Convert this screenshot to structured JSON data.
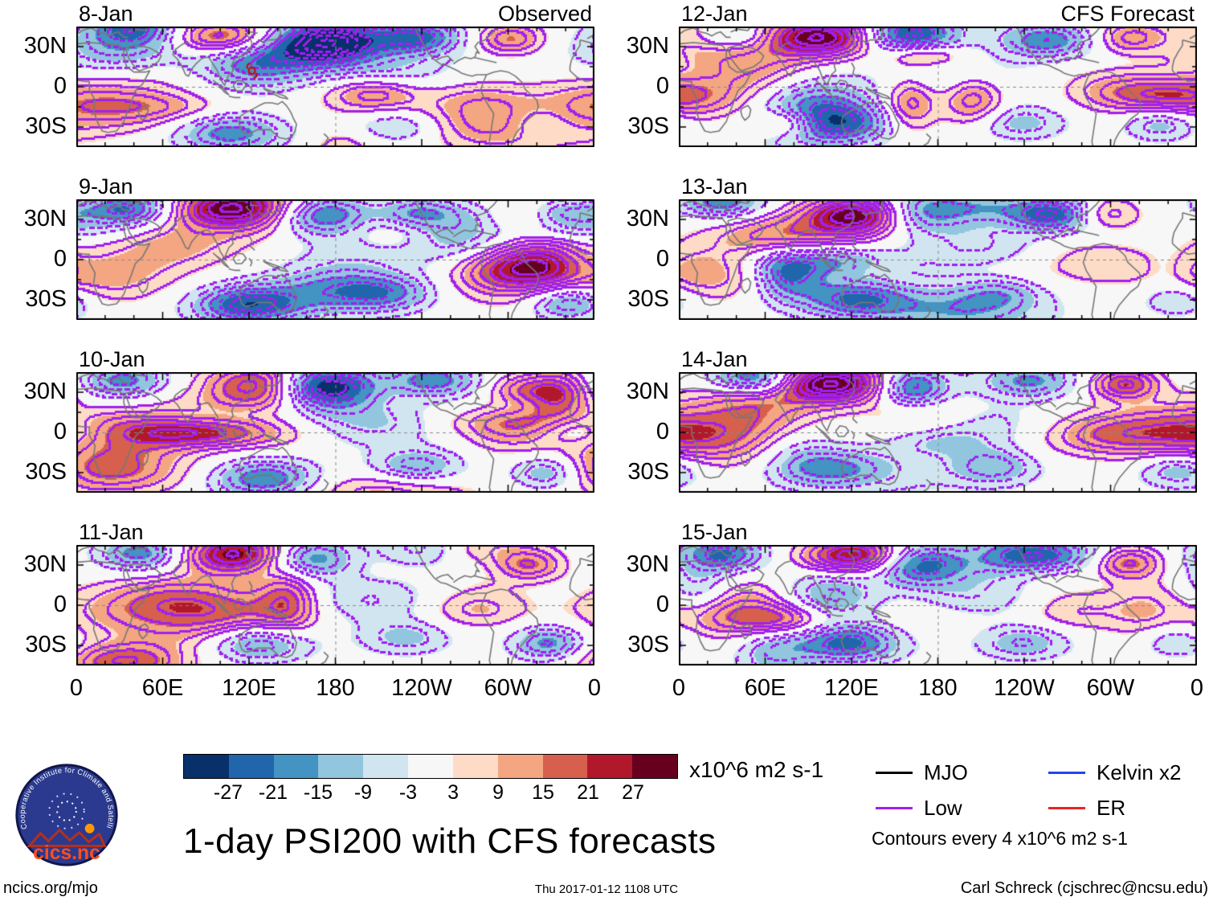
{
  "panels": [
    {
      "date": "8-Jan",
      "corner": "Observed"
    },
    {
      "date": "9-Jan",
      "corner": ""
    },
    {
      "date": "10-Jan",
      "corner": ""
    },
    {
      "date": "11-Jan",
      "corner": ""
    },
    {
      "date": "12-Jan",
      "corner": "CFS Forecast"
    },
    {
      "date": "13-Jan",
      "corner": ""
    },
    {
      "date": "14-Jan",
      "corner": ""
    },
    {
      "date": "15-Jan",
      "corner": ""
    }
  ],
  "axes": {
    "y_ticks": [
      "30N",
      "0",
      "30S"
    ],
    "x_ticks": [
      "0",
      "60E",
      "120E",
      "180",
      "120W",
      "60W",
      "0"
    ]
  },
  "chart_data": {
    "type": "heatmap",
    "title": "1-day PSI200 with CFS forecasts",
    "variable": "PSI200 streamfunction anomaly",
    "units": "x10^6 m2 s-1",
    "columns": [
      {
        "title": "Observed",
        "dates": [
          "8-Jan",
          "9-Jan",
          "10-Jan",
          "11-Jan"
        ]
      },
      {
        "title": "CFS Forecast",
        "dates": [
          "12-Jan",
          "13-Jan",
          "14-Jan",
          "15-Jan"
        ]
      }
    ],
    "lon_range": [
      0,
      360
    ],
    "lat_range": [
      -45,
      45
    ],
    "x_tick_labels": [
      "0",
      "60E",
      "120E",
      "180",
      "120W",
      "60W",
      "0"
    ],
    "y_tick_labels": [
      "30N",
      "0",
      "30S"
    ],
    "colorbar": {
      "levels": [
        -27,
        -21,
        -15,
        -9,
        -3,
        3,
        9,
        15,
        21,
        27
      ],
      "colors": [
        "#08306b",
        "#2166ac",
        "#4393c3",
        "#92c5de",
        "#d1e5f0",
        "#f7f7f7",
        "#fddbc7",
        "#f4a582",
        "#d6604d",
        "#b2182b",
        "#67001f"
      ],
      "label": "x10^6 m2 s-1"
    },
    "contours": {
      "color": "#a020f0",
      "interval": 4,
      "note": "Contours every 4 x10^6 m2 s-1"
    },
    "legend": [
      {
        "label": "MJO",
        "color": "#000000"
      },
      {
        "label": "Kelvin x2",
        "color": "#2244ee"
      },
      {
        "label": "Low",
        "color": "#a020f0"
      },
      {
        "label": "ER",
        "color": "#ee2222"
      }
    ],
    "storm_marker": {
      "date": "8-Jan",
      "lon": 122,
      "lat": 12,
      "color": "#cc0000"
    }
  },
  "logo": {
    "ring_text": "Cooperative Institute for Climate and Satellites",
    "name": "cics.nc"
  },
  "footer": {
    "left": "ncics.org/mjo",
    "center": "Thu 2017-01-12 1108 UTC",
    "right": "Carl Schreck (cjschrec@ncsu.edu)"
  }
}
